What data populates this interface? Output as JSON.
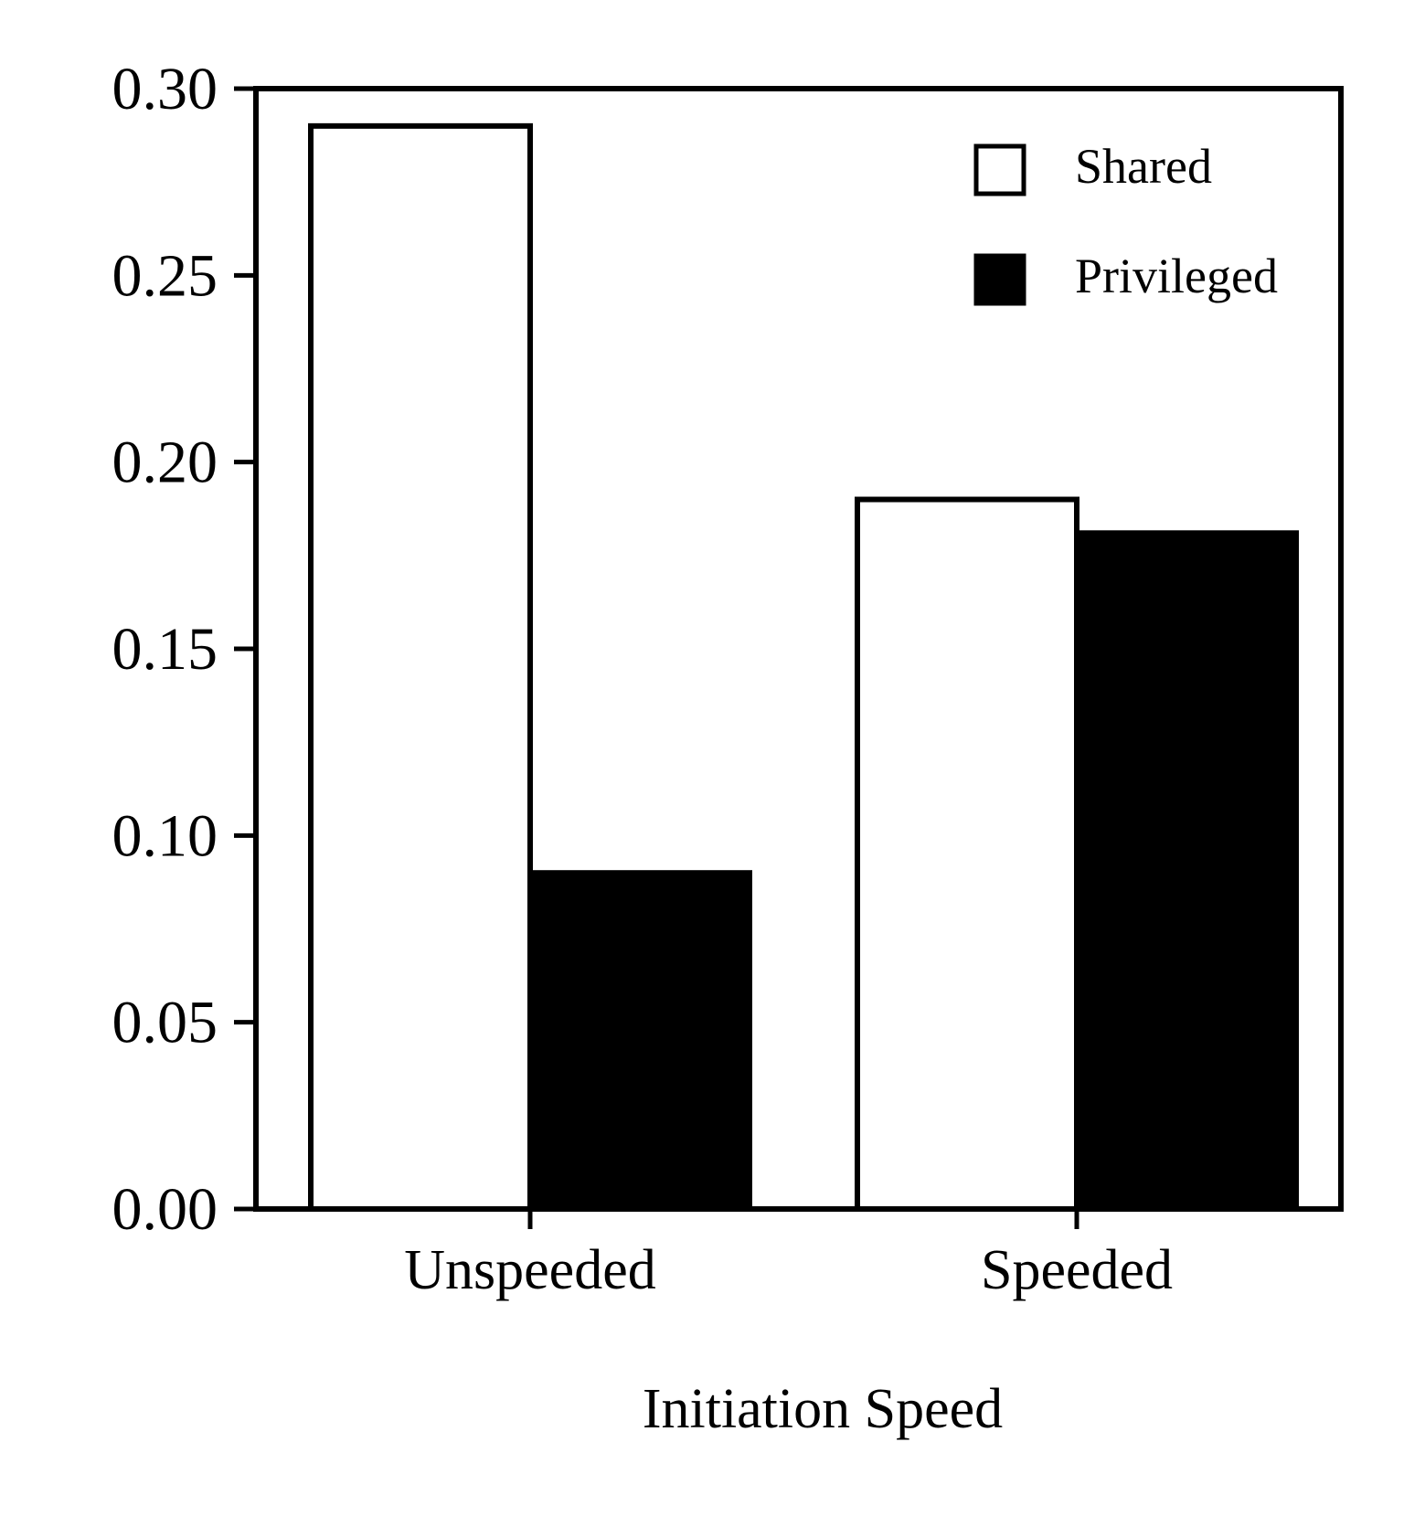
{
  "chart_data": {
    "type": "bar",
    "title": "",
    "xlabel": "Initiation Speed",
    "ylabel": "",
    "categories": [
      "Unspeeded",
      "Speeded"
    ],
    "series": [
      {
        "name": "Shared",
        "values": [
          0.29,
          0.19
        ],
        "fill": "#ffffff",
        "stroke": "#000000"
      },
      {
        "name": "Privileged",
        "values": [
          0.09,
          0.181
        ],
        "fill": "#000000",
        "stroke": "#000000"
      }
    ],
    "ylim": [
      0,
      0.3
    ],
    "yticks": [
      "0.00",
      "0.05",
      "0.10",
      "0.15",
      "0.20",
      "0.25",
      "0.30"
    ],
    "grid": false,
    "legend": {
      "position": "top-right"
    }
  }
}
